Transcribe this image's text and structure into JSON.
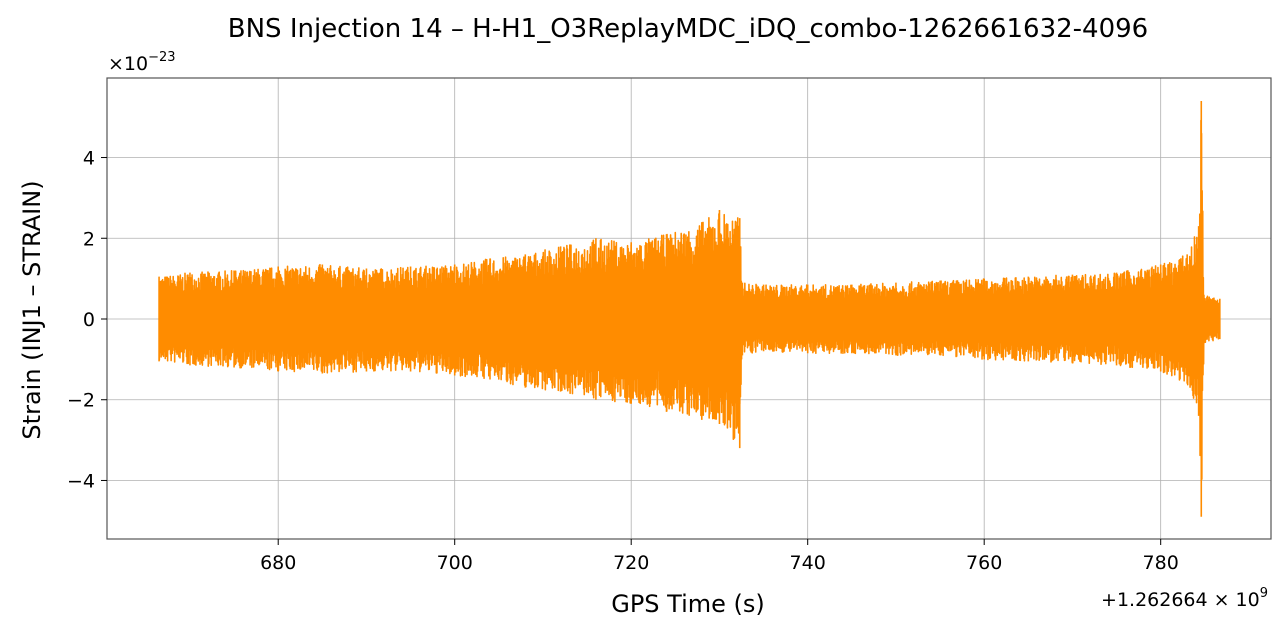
{
  "chart_data": {
    "type": "line",
    "title": "BNS Injection 14 – H-H1_O3ReplayMDC_iDQ_combo-1262661632-4096",
    "xlabel": "GPS Time (s)",
    "ylabel": "Strain (INJ1 – STRAIN)",
    "x_offset_label": "+1.262664",
    "x_offset_exponent": "9",
    "y_multiplier_label": "×10",
    "y_multiplier_exponent": "−23",
    "xlim": [
      660.6,
      792.5
    ],
    "ylim": [
      -5.45,
      5.97
    ],
    "xticks": [
      680,
      700,
      720,
      740,
      760,
      780
    ],
    "xtick_labels": [
      "680",
      "700",
      "720",
      "740",
      "760",
      "780"
    ],
    "yticks": [
      -4,
      -2,
      0,
      2,
      4
    ],
    "ytick_labels": [
      "−4",
      "−2",
      "0",
      "2",
      "4"
    ],
    "grid": true,
    "legend": "none",
    "series": [
      {
        "color": "#ff8c00",
        "x_range": [
          666.5,
          786.7
        ],
        "envelope": [
          {
            "x": 666.5,
            "upper": 1.05,
            "lower": -1.05
          },
          {
            "x": 670,
            "upper": 1.15,
            "lower": -1.15
          },
          {
            "x": 675,
            "upper": 1.2,
            "lower": -1.2
          },
          {
            "x": 680,
            "upper": 1.3,
            "lower": -1.3
          },
          {
            "x": 685,
            "upper": 1.35,
            "lower": -1.35
          },
          {
            "x": 690,
            "upper": 1.25,
            "lower": -1.3
          },
          {
            "x": 695,
            "upper": 1.3,
            "lower": -1.3
          },
          {
            "x": 700,
            "upper": 1.35,
            "lower": -1.4
          },
          {
            "x": 704,
            "upper": 1.5,
            "lower": -1.5
          },
          {
            "x": 708,
            "upper": 1.6,
            "lower": -1.7
          },
          {
            "x": 712,
            "upper": 1.8,
            "lower": -1.8
          },
          {
            "x": 716,
            "upper": 2.0,
            "lower": -2.0
          },
          {
            "x": 720,
            "upper": 1.9,
            "lower": -2.1
          },
          {
            "x": 724,
            "upper": 2.1,
            "lower": -2.3
          },
          {
            "x": 728,
            "upper": 2.4,
            "lower": -2.5
          },
          {
            "x": 730,
            "upper": 2.7,
            "lower": -2.6
          },
          {
            "x": 732.3,
            "upper": 2.5,
            "lower": -3.2
          },
          {
            "x": 732.6,
            "upper": 0.9,
            "lower": -0.9
          },
          {
            "x": 735,
            "upper": 0.85,
            "lower": -0.8
          },
          {
            "x": 740,
            "upper": 0.85,
            "lower": -0.85
          },
          {
            "x": 745,
            "upper": 0.85,
            "lower": -0.85
          },
          {
            "x": 750,
            "upper": 0.9,
            "lower": -0.9
          },
          {
            "x": 755,
            "upper": 0.95,
            "lower": -0.9
          },
          {
            "x": 760,
            "upper": 1.0,
            "lower": -1.0
          },
          {
            "x": 765,
            "upper": 1.05,
            "lower": -1.05
          },
          {
            "x": 770,
            "upper": 1.1,
            "lower": -1.1
          },
          {
            "x": 775,
            "upper": 1.15,
            "lower": -1.15
          },
          {
            "x": 780,
            "upper": 1.35,
            "lower": -1.3
          },
          {
            "x": 783,
            "upper": 1.6,
            "lower": -1.6
          },
          {
            "x": 784.3,
            "upper": 2.3,
            "lower": -2.4
          },
          {
            "x": 784.6,
            "upper": 5.4,
            "lower": -4.9
          },
          {
            "x": 784.9,
            "upper": 0.6,
            "lower": -0.6
          },
          {
            "x": 786.7,
            "upper": 0.5,
            "lower": -0.5
          }
        ]
      }
    ]
  }
}
